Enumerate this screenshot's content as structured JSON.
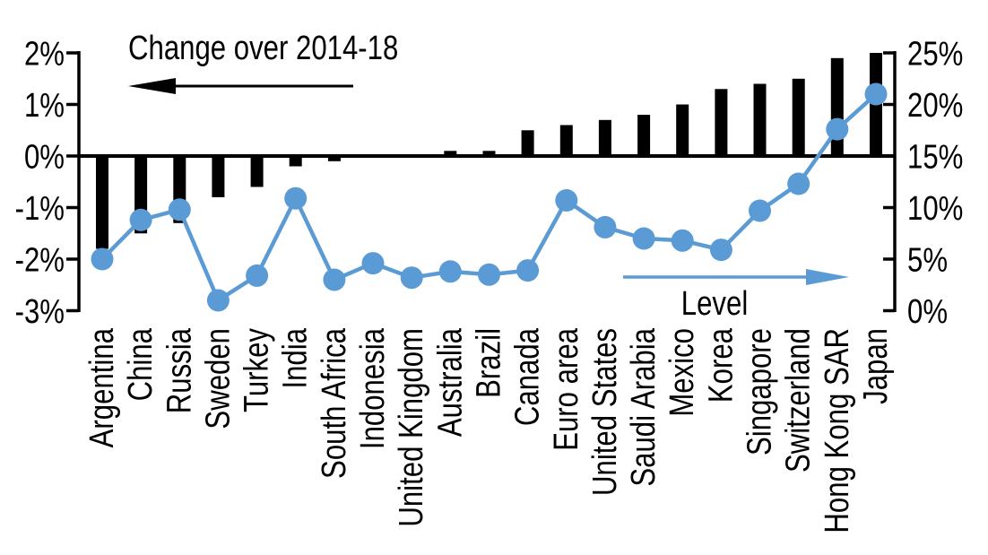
{
  "chart_data": {
    "type": "bar",
    "subtype": "dual-axis combo: bars (left axis) + line with markers (right axis)",
    "categories": [
      "Argentina",
      "China",
      "Russia",
      "Sweden",
      "Turkey",
      "India",
      "South Africa",
      "Indonesia",
      "United Kingdom",
      "Australia",
      "Brazil",
      "Canada",
      "Euro area",
      "United States",
      "Saudi Arabia",
      "Mexico",
      "Korea",
      "Singapore",
      "Switzerland",
      "Hong Kong SAR",
      "Japan"
    ],
    "series": [
      {
        "name": "Change over 2014-18",
        "type": "bar",
        "axis": "left",
        "color": "#000000",
        "values": [
          -1.8,
          -1.5,
          -1.3,
          -0.8,
          -0.6,
          -0.2,
          -0.1,
          0.0,
          0.0,
          0.1,
          0.1,
          0.5,
          0.6,
          0.7,
          0.8,
          1.0,
          1.3,
          1.4,
          1.5,
          1.9,
          2.0
        ]
      },
      {
        "name": "Level",
        "type": "line",
        "axis": "right",
        "color": "#5B9BD5",
        "values": [
          5.0,
          8.8,
          9.8,
          1.0,
          3.4,
          10.9,
          3.0,
          4.6,
          3.2,
          3.8,
          3.5,
          3.9,
          10.7,
          8.1,
          7.0,
          6.8,
          5.9,
          9.7,
          12.3,
          17.6,
          21.0
        ]
      }
    ],
    "left_axis": {
      "ticks": [
        "2%",
        "1%",
        "0%",
        "-1%",
        "-2%",
        "-3%"
      ],
      "min": -3,
      "max": 2,
      "unit": "%"
    },
    "right_axis": {
      "ticks": [
        "25%",
        "20%",
        "15%",
        "10%",
        "5%",
        "0%"
      ],
      "min": 0,
      "max": 25,
      "unit": "%"
    },
    "annotations": [
      {
        "text": "Change over 2014-18",
        "arrow_direction": "left",
        "color": "#000000"
      },
      {
        "text": "Level",
        "arrow_direction": "right",
        "color": "#5B9BD5"
      }
    ],
    "grid": false,
    "legend_position": "none"
  }
}
